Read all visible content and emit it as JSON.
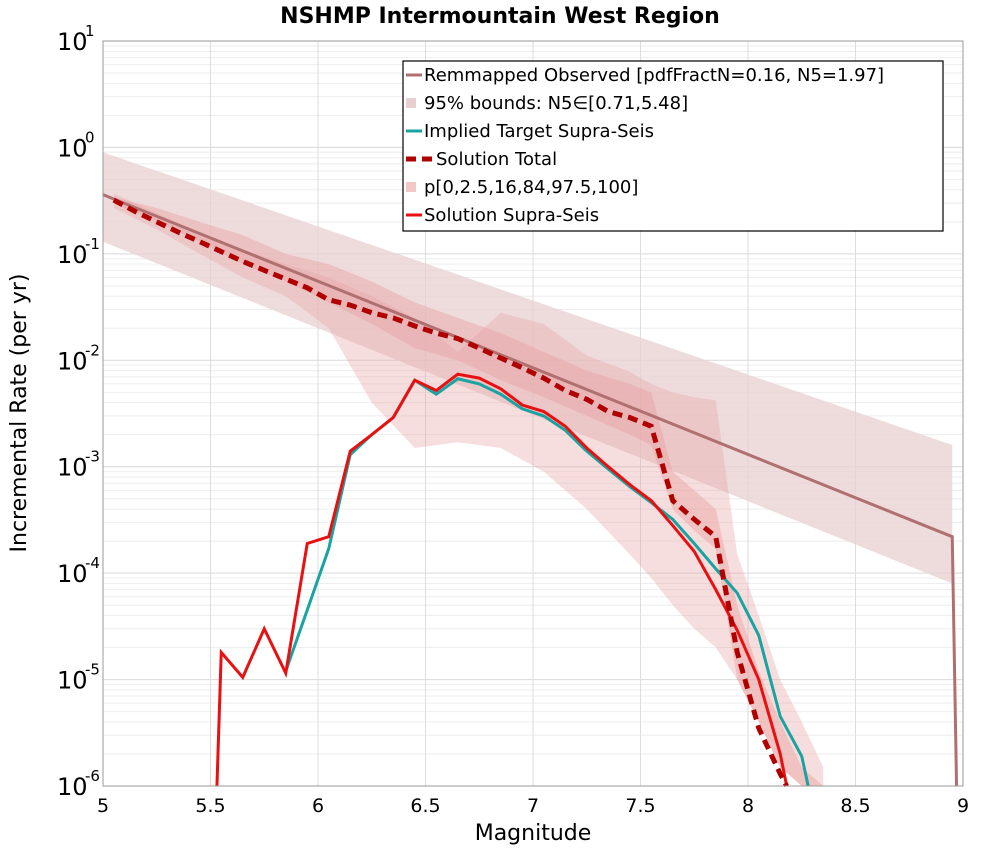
{
  "chart_data": {
    "type": "line",
    "title": "NSHMP Intermountain West Region",
    "xlabel": "Magnitude",
    "ylabel": "Incremental Rate (per yr)",
    "xlim": [
      5,
      9
    ],
    "ylim": [
      1e-06,
      10
    ],
    "y_scale": "log",
    "grid": true,
    "legend_position": "top-right",
    "x_ticks": [
      "5",
      "5.5",
      "6",
      "6.5",
      "7",
      "7.5",
      "8",
      "8.5",
      "9"
    ],
    "y_tick_exponents": [
      "1",
      "0",
      "-1",
      "-2",
      "-3",
      "-4",
      "-5",
      "-6"
    ],
    "legend": [
      {
        "label": "Remmapped Observed [pdfFractN=0.16, N5=1.97]",
        "style": "line",
        "color": "#b07070"
      },
      {
        "label": "95% bounds: N5∈[0.71,5.48]",
        "style": "band",
        "color": "#e8d0d2"
      },
      {
        "label": "Implied Target Supra-Seis",
        "style": "line",
        "color": "#1aa3a0"
      },
      {
        "label": "Solution Total",
        "style": "dashed",
        "color": "#b00000"
      },
      {
        "label": "p[0,2.5,16,84,97.5,100]",
        "style": "band",
        "color": "#f2c8c8"
      },
      {
        "label": "Solution Supra-Seis",
        "style": "line",
        "color": "#e81010"
      }
    ],
    "colors": {
      "observed": "#b07070",
      "bounds95": "#e8d0d2",
      "target": "#1aa3a0",
      "solution_total": "#b00000",
      "percentile_band": "#e8a0a0",
      "solution_supra": "#e81010"
    },
    "series": [
      {
        "name": "Remmapped Observed [pdfFractN=0.16, N5=1.97]",
        "x": [
          5.0,
          8.95,
          8.95,
          8.97
        ],
        "y": [
          0.36,
          0.00022,
          0.00022,
          1e-06
        ]
      },
      {
        "name": "95% bounds: N5∈[0.71,5.48]",
        "band": true,
        "x": [
          5.0,
          8.95
        ],
        "lower": [
          0.13,
          8e-05
        ],
        "upper": [
          0.9,
          0.0016
        ]
      },
      {
        "name": "Implied Target Supra-Seis",
        "x": [
          5.85,
          5.95,
          6.05,
          6.15,
          6.25,
          6.35,
          6.45,
          6.55,
          6.65,
          6.75,
          6.85,
          6.95,
          7.05,
          7.15,
          7.25,
          7.35,
          7.45,
          7.55,
          7.65,
          7.75,
          7.85,
          7.95,
          8.05,
          8.15,
          8.25,
          8.28
        ],
        "y": [
          1.2e-05,
          4.5e-05,
          0.00017,
          0.0013,
          0.002,
          0.0029,
          0.0065,
          0.0048,
          0.0067,
          0.006,
          0.0048,
          0.0035,
          0.003,
          0.0022,
          0.0014,
          0.00095,
          0.00065,
          0.00046,
          0.00032,
          0.00019,
          0.00011,
          6.5e-05,
          2.6e-05,
          4.5e-06,
          1.9e-06,
          1e-06
        ]
      },
      {
        "name": "Solution Total",
        "x": [
          5.05,
          5.15,
          5.25,
          5.35,
          5.45,
          5.55,
          5.65,
          5.75,
          5.85,
          5.95,
          6.05,
          6.15,
          6.25,
          6.35,
          6.45,
          6.55,
          6.65,
          6.75,
          6.85,
          6.95,
          7.05,
          7.15,
          7.25,
          7.35,
          7.45,
          7.55,
          7.65,
          7.75,
          7.85,
          7.95,
          8.05,
          8.15,
          8.18
        ],
        "y": [
          0.32,
          0.25,
          0.2,
          0.16,
          0.13,
          0.105,
          0.085,
          0.07,
          0.058,
          0.048,
          0.037,
          0.033,
          0.028,
          0.025,
          0.021,
          0.018,
          0.016,
          0.013,
          0.0105,
          0.0085,
          0.0068,
          0.0052,
          0.0043,
          0.0033,
          0.0029,
          0.0024,
          0.00048,
          0.00032,
          0.00022,
          1.8e-05,
          3.5e-06,
          1.3e-06,
          1e-06
        ]
      },
      {
        "name": "p[0,2.5,16,84,97.5,100]",
        "band": true,
        "x": [
          5.05,
          5.25,
          5.45,
          5.65,
          5.85,
          6.05,
          6.25,
          6.45,
          6.65,
          6.85,
          7.05,
          7.25,
          7.45,
          7.55,
          7.65,
          7.75,
          7.85,
          7.95,
          8.05,
          8.15,
          8.25,
          8.35
        ],
        "p0": [
          0.27,
          0.17,
          0.1,
          0.06,
          0.04,
          0.02,
          0.004,
          0.0015,
          0.0017,
          0.0015,
          0.0009,
          0.0004,
          0.00015,
          9e-05,
          5e-05,
          3e-05,
          2e-05,
          1e-05,
          4e-06,
          1.5e-06,
          1e-06,
          1e-06
        ],
        "p100": [
          0.37,
          0.24,
          0.16,
          0.11,
          0.08,
          0.06,
          0.04,
          0.025,
          0.012,
          0.028,
          0.022,
          0.0111,
          0.0078,
          0.006,
          0.005,
          0.0045,
          0.0042,
          0.00015,
          4e-05,
          1e-05,
          4e-06,
          1.5e-06
        ],
        "p16": [
          0.3,
          0.2,
          0.13,
          0.08,
          0.055,
          0.035,
          0.022,
          0.013,
          0.01,
          0.0065,
          0.0045,
          0.003,
          0.002,
          0.0016,
          0.0004,
          0.00025,
          0.00017,
          1e-05,
          4e-06,
          1.5e-06,
          1e-06,
          1e-06
        ],
        "p84": [
          0.34,
          0.27,
          0.2,
          0.15,
          0.1,
          0.08,
          0.055,
          0.035,
          0.025,
          0.018,
          0.012,
          0.008,
          0.006,
          0.005,
          0.0009,
          0.0006,
          0.0004,
          5e-05,
          1.2e-05,
          4e-06,
          1.5e-06,
          1e-06
        ]
      },
      {
        "name": "Solution Supra-Seis",
        "x": [
          5.53,
          5.55,
          5.65,
          5.75,
          5.85,
          5.95,
          6.05,
          6.15,
          6.25,
          6.35,
          6.45,
          6.55,
          6.65,
          6.75,
          6.85,
          6.95,
          7.05,
          7.15,
          7.25,
          7.35,
          7.45,
          7.55,
          7.65,
          7.75,
          7.85,
          7.95,
          8.05,
          8.15,
          8.18
        ],
        "y": [
          1e-06,
          1.8e-05,
          1.05e-05,
          3e-05,
          1.15e-05,
          0.00019,
          0.00022,
          0.0014,
          0.002,
          0.0029,
          0.0065,
          0.0052,
          0.0074,
          0.0068,
          0.0054,
          0.0038,
          0.0033,
          0.0024,
          0.0015,
          0.001,
          0.00068,
          0.00048,
          0.00028,
          0.00016,
          7e-05,
          2.9e-05,
          1e-05,
          2e-06,
          1e-06
        ]
      }
    ]
  }
}
